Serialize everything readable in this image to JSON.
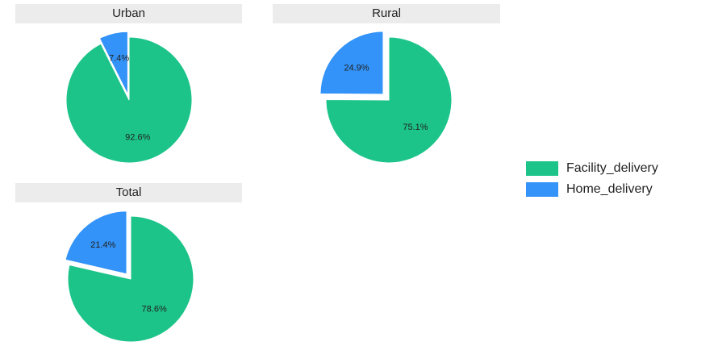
{
  "colors": {
    "facility": "#1cc48a",
    "home": "#3393f8"
  },
  "legend": [
    {
      "label": "Facility_delivery",
      "color": "#1cc48a"
    },
    {
      "label": "Home_delivery",
      "color": "#3393f8"
    }
  ],
  "chart_data": [
    {
      "type": "pie",
      "title": "Urban",
      "categories": [
        "Facility_delivery",
        "Home_delivery"
      ],
      "values": [
        92.6,
        7.4
      ],
      "labels": [
        "92.6%",
        "7.4%"
      ],
      "exploded": [
        "Home_delivery"
      ]
    },
    {
      "type": "pie",
      "title": "Rural",
      "categories": [
        "Facility_delivery",
        "Home_delivery"
      ],
      "values": [
        75.1,
        24.9
      ],
      "labels": [
        "75.1%",
        "24.9%"
      ],
      "exploded": [
        "Home_delivery"
      ]
    },
    {
      "type": "pie",
      "title": "Total",
      "categories": [
        "Facility_delivery",
        "Home_delivery"
      ],
      "values": [
        78.6,
        21.4
      ],
      "labels": [
        "78.6%",
        "21.4%"
      ],
      "exploded": [
        "Home_delivery"
      ]
    }
  ]
}
